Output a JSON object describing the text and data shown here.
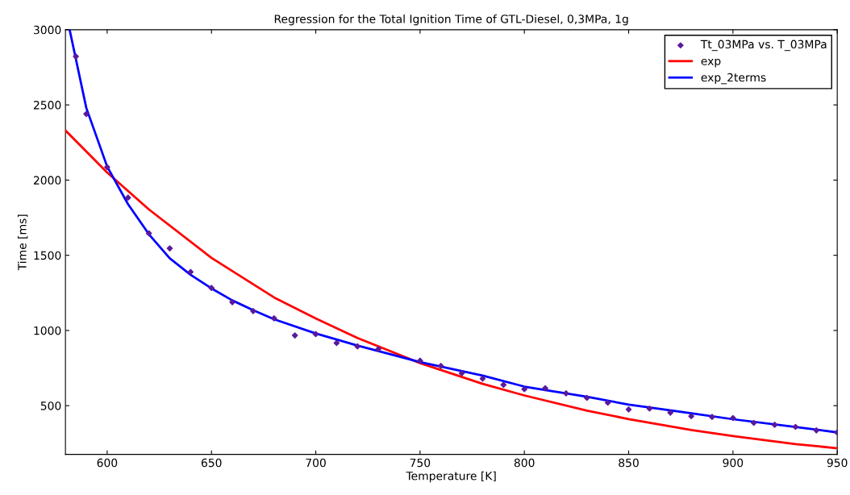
{
  "chart_data": {
    "type": "scatter",
    "title": "Regression for the Total Ignition Time of GTL-Diesel, 0,3MPa, 1g",
    "xlabel": "Temperature [K]",
    "ylabel": "Time [ms]",
    "xlim": [
      580,
      950
    ],
    "ylim": [
      176,
      3000
    ],
    "xticks": [
      600,
      650,
      700,
      750,
      800,
      850,
      900,
      950
    ],
    "yticks": [
      500,
      1000,
      1500,
      2000,
      2500,
      3000
    ],
    "grid": false,
    "legend": "top right",
    "series": [
      {
        "name": "Tt_03MPa vs. T_03MPa",
        "marker": "diamond",
        "color": "#5b1a9c",
        "x": [
          585,
          590,
          600,
          610,
          620,
          630,
          640,
          650,
          660,
          670,
          680,
          690,
          700,
          710,
          720,
          730,
          750,
          760,
          770,
          780,
          790,
          800,
          810,
          820,
          830,
          840,
          850,
          860,
          870,
          880,
          890,
          900,
          910,
          920,
          930,
          940,
          950
        ],
        "values": [
          2822,
          2440,
          2086,
          1883,
          1646,
          1546,
          1389,
          1283,
          1188,
          1129,
          1081,
          967,
          976,
          917,
          894,
          876,
          799,
          764,
          716,
          680,
          639,
          610,
          616,
          582,
          552,
          520,
          475,
          481,
          454,
          430,
          425,
          418,
          386,
          373,
          359,
          336,
          322
        ]
      },
      {
        "name": "exp",
        "type": "line",
        "marker": "none",
        "line_style": "solid",
        "color": "#ff0000",
        "x": [
          580,
          600,
          620,
          650,
          680,
          700,
          720,
          750,
          780,
          800,
          830,
          850,
          880,
          900,
          930,
          950
        ],
        "values": [
          2330,
          2050,
          1805,
          1483,
          1220,
          1080,
          950,
          783,
          645,
          568,
          467,
          411,
          338,
          298,
          245,
          217
        ]
      },
      {
        "name": "exp_2terms",
        "type": "line",
        "marker": "none",
        "line_style": "solid",
        "color": "#0000ff",
        "x": [
          582,
          590,
          600,
          610,
          620,
          630,
          640,
          650,
          660,
          670,
          680,
          700,
          720,
          750,
          780,
          800,
          830,
          850,
          880,
          900,
          930,
          950
        ],
        "values": [
          3000,
          2480,
          2090,
          1840,
          1640,
          1480,
          1370,
          1280,
          1200,
          1135,
          1075,
          980,
          900,
          790,
          700,
          627,
          560,
          507,
          450,
          410,
          359,
          322
        ]
      }
    ]
  }
}
